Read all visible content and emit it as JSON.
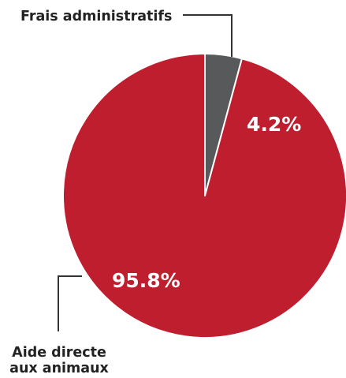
{
  "chart_data": {
    "type": "pie",
    "slices": [
      {
        "label_lines": [
          "Aide directe",
          "aux animaux"
        ],
        "value": 95.8,
        "value_label": "95.8%",
        "color": "#be1e2d"
      },
      {
        "label_lines": [
          "Frais administratifs"
        ],
        "value": 4.2,
        "value_label": "4.2%",
        "color": "#58595b"
      }
    ]
  }
}
